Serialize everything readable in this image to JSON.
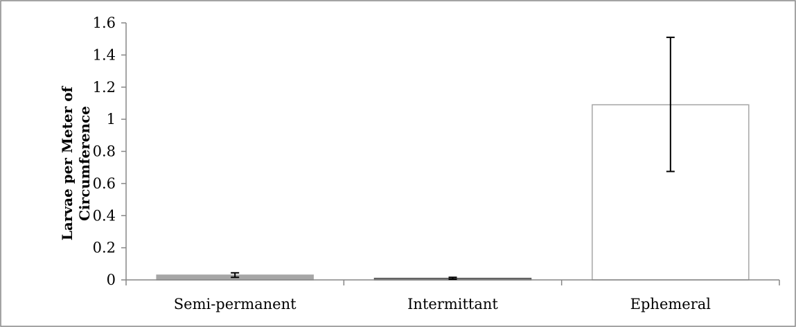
{
  "chart_data": {
    "type": "bar",
    "title": "",
    "xlabel": "",
    "ylabel_lines": [
      "Larvae per Meter of",
      "Circumference"
    ],
    "categories": [
      "Semi-permanent",
      "Intermittant",
      "Ephemeral"
    ],
    "values": [
      0.03,
      0.01,
      1.09
    ],
    "error_low": [
      0.016,
      0.004,
      0.675
    ],
    "error_high": [
      0.044,
      0.016,
      1.51
    ],
    "ylim": [
      0,
      1.6
    ],
    "yticks": [
      "0",
      "0.2",
      "0.4",
      "0.6",
      "0.8",
      "1",
      "1.2",
      "1.4",
      "1.6"
    ],
    "grid": false,
    "legend": "none",
    "colors": {
      "bar_fills": [
        "#a6a6a6",
        "#7f7f7f",
        "#ffffff"
      ],
      "bar_strokes": [
        "#a6a6a6",
        "#595959",
        "#a6a6a6"
      ],
      "axis": "#868686",
      "error_bar": "#000000",
      "frame": "#868686"
    }
  }
}
